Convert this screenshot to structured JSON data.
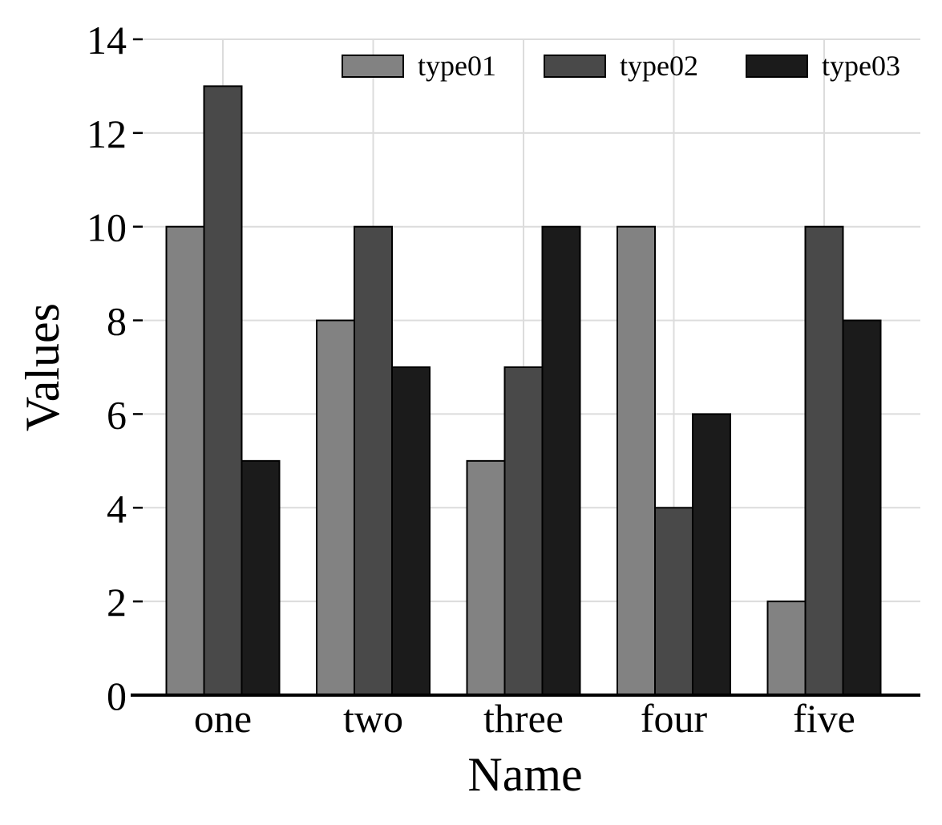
{
  "chart_data": {
    "type": "bar",
    "title": "",
    "xlabel": "Name",
    "ylabel": "Values",
    "categories": [
      "one",
      "two",
      "three",
      "four",
      "five"
    ],
    "series": [
      {
        "name": "type01",
        "color": "#828282",
        "values": [
          10,
          8,
          5,
          10,
          2
        ]
      },
      {
        "name": "type02",
        "color": "#494949",
        "values": [
          13,
          10,
          7,
          4,
          10
        ]
      },
      {
        "name": "type03",
        "color": "#1b1b1b",
        "values": [
          5,
          7,
          10,
          6,
          8
        ]
      }
    ],
    "ylim": [
      0,
      14
    ],
    "yticks": [
      0,
      2,
      4,
      6,
      8,
      10,
      12,
      14
    ],
    "grid": true,
    "legend_position": "top-right"
  }
}
